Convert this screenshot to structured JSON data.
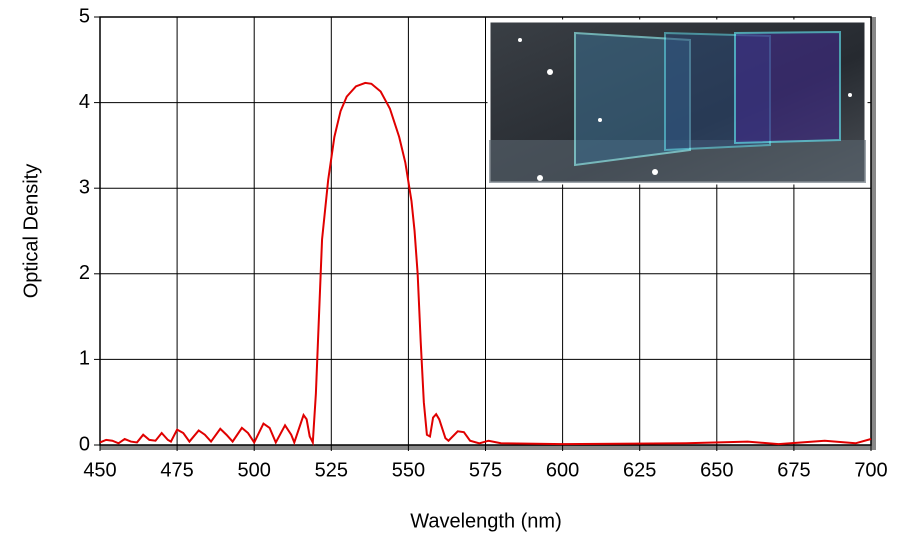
{
  "chart_data": {
    "type": "line",
    "x_label": "Wavelength (nm)",
    "y_label": "Optical Density",
    "xlim": [
      450,
      700
    ],
    "xticks": [
      450,
      475,
      500,
      525,
      550,
      575,
      600,
      625,
      650,
      675,
      700
    ],
    "ylim": [
      0,
      5
    ],
    "yticks": [
      0,
      1,
      2,
      3,
      4,
      5
    ],
    "grid": true,
    "series": [
      {
        "color": "#e00000",
        "x": [
          450,
          452,
          454,
          456,
          458,
          460,
          462,
          464,
          466,
          468,
          470,
          472,
          473,
          475,
          477,
          479,
          482,
          484,
          486,
          489,
          491,
          493,
          496,
          498,
          500,
          503,
          505,
          507,
          510,
          512,
          513,
          516,
          517,
          518,
          519,
          520,
          521,
          522,
          524,
          526,
          528,
          530,
          533,
          536,
          538,
          541,
          544,
          547,
          549,
          551,
          552,
          553,
          554,
          555,
          556,
          557,
          558,
          559,
          560,
          562,
          563,
          566,
          568,
          570,
          573,
          576,
          580,
          600,
          640,
          660,
          670,
          685,
          695,
          700
        ],
        "values": [
          0.03,
          0.06,
          0.05,
          0.02,
          0.07,
          0.04,
          0.03,
          0.12,
          0.06,
          0.05,
          0.14,
          0.06,
          0.04,
          0.18,
          0.14,
          0.04,
          0.17,
          0.12,
          0.04,
          0.19,
          0.12,
          0.04,
          0.2,
          0.14,
          0.03,
          0.25,
          0.2,
          0.03,
          0.23,
          0.12,
          0.03,
          0.35,
          0.3,
          0.1,
          0.03,
          0.6,
          1.5,
          2.4,
          3.1,
          3.6,
          3.9,
          4.07,
          4.19,
          4.23,
          4.22,
          4.13,
          3.93,
          3.6,
          3.3,
          2.85,
          2.5,
          2.0,
          1.2,
          0.5,
          0.12,
          0.1,
          0.32,
          0.36,
          0.3,
          0.08,
          0.05,
          0.16,
          0.15,
          0.05,
          0.02,
          0.05,
          0.02,
          0.01,
          0.02,
          0.04,
          0.01,
          0.05,
          0.02,
          0.07
        ]
      }
    ]
  }
}
